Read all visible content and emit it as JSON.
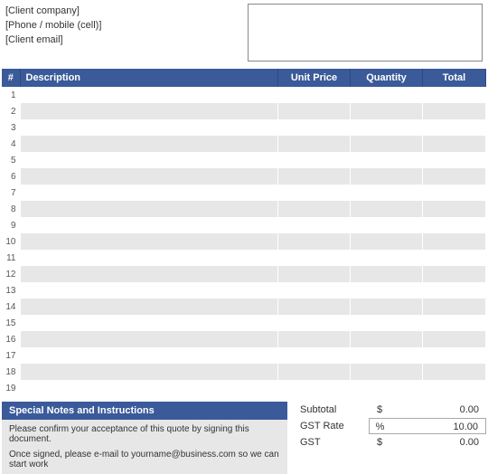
{
  "client": {
    "company": "[Client company]",
    "phone": "[Phone / mobile (cell)]",
    "email": "[Client email]"
  },
  "table": {
    "headers": {
      "num": "#",
      "description": "Description",
      "unit_price": "Unit Price",
      "quantity": "Quantity",
      "total": "Total"
    },
    "row_count": 19,
    "colors": {
      "header_bg": "#3a5a9a",
      "header_text": "#ffffff",
      "row_odd_bg": "#ffffff",
      "row_even_bg": "#e7e7e7"
    }
  },
  "notes": {
    "header": "Special Notes and Instructions",
    "lines": [
      "Please confirm your acceptance of this quote by signing this document.",
      "Once signed, please e-mail to yourname@business.com so we can start work"
    ]
  },
  "totals": {
    "subtotal": {
      "label": "Subtotal",
      "symbol": "$",
      "value": "0.00"
    },
    "gst_rate": {
      "label": "GST Rate",
      "symbol": "%",
      "value": "10.00"
    },
    "gst": {
      "label": "GST",
      "symbol": "$",
      "value": "0.00"
    }
  }
}
